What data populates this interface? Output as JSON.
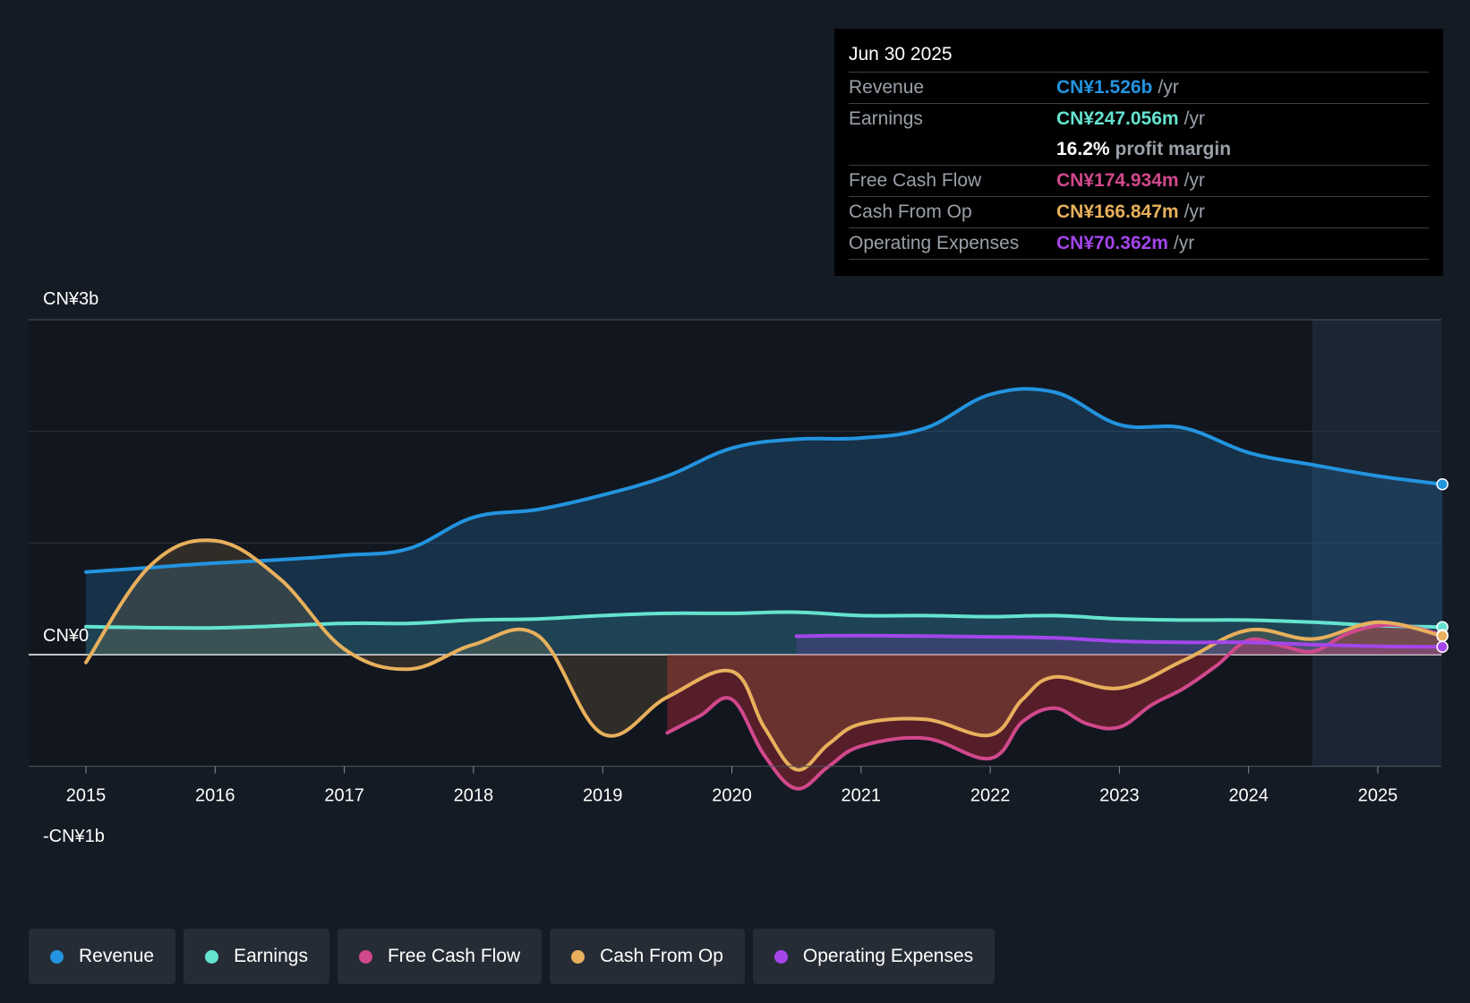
{
  "chart_data": {
    "type": "area",
    "y_axis": {
      "top_label": "CN¥3b",
      "zero_label": "CN¥0",
      "bottom_label": "-CN¥1b",
      "ylim_billion": [
        -1,
        3
      ],
      "grid": true
    },
    "x_axis": {
      "ticks": [
        "2015",
        "2016",
        "2017",
        "2018",
        "2019",
        "2020",
        "2021",
        "2022",
        "2023",
        "2024",
        "2025"
      ],
      "xlim_years": [
        2014.55,
        2025.5
      ]
    },
    "forecast_shade_start_year": 2024.5,
    "series": [
      {
        "name": "Revenue",
        "color": "#2394df",
        "points": [
          [
            2015.0,
            0.74
          ],
          [
            2015.5,
            0.78
          ],
          [
            2016.0,
            0.82
          ],
          [
            2016.5,
            0.85
          ],
          [
            2017.0,
            0.89
          ],
          [
            2017.5,
            0.95
          ],
          [
            2018.0,
            1.23
          ],
          [
            2018.5,
            1.3
          ],
          [
            2019.0,
            1.43
          ],
          [
            2019.5,
            1.6
          ],
          [
            2020.0,
            1.85
          ],
          [
            2020.5,
            1.93
          ],
          [
            2021.0,
            1.94
          ],
          [
            2021.5,
            2.03
          ],
          [
            2022.0,
            2.33
          ],
          [
            2022.5,
            2.35
          ],
          [
            2023.0,
            2.06
          ],
          [
            2023.5,
            2.03
          ],
          [
            2024.0,
            1.81
          ],
          [
            2024.5,
            1.7
          ],
          [
            2025.0,
            1.6
          ],
          [
            2025.5,
            1.526
          ]
        ]
      },
      {
        "name": "Earnings",
        "color": "#64e3cf",
        "points": [
          [
            2015.0,
            0.25
          ],
          [
            2016.0,
            0.24
          ],
          [
            2017.0,
            0.28
          ],
          [
            2017.5,
            0.28
          ],
          [
            2018.0,
            0.31
          ],
          [
            2018.5,
            0.32
          ],
          [
            2019.0,
            0.35
          ],
          [
            2019.5,
            0.37
          ],
          [
            2020.0,
            0.37
          ],
          [
            2020.5,
            0.38
          ],
          [
            2021.0,
            0.35
          ],
          [
            2021.5,
            0.35
          ],
          [
            2022.0,
            0.34
          ],
          [
            2022.5,
            0.35
          ],
          [
            2023.0,
            0.32
          ],
          [
            2023.5,
            0.31
          ],
          [
            2024.0,
            0.31
          ],
          [
            2024.5,
            0.29
          ],
          [
            2025.0,
            0.26
          ],
          [
            2025.5,
            0.247
          ]
        ]
      },
      {
        "name": "Free Cash Flow",
        "color": "#d1488c",
        "points": [
          [
            2019.5,
            -0.7
          ],
          [
            2019.75,
            -0.55
          ],
          [
            2020.0,
            -0.4
          ],
          [
            2020.25,
            -0.9
          ],
          [
            2020.5,
            -1.2
          ],
          [
            2020.75,
            -1.0
          ],
          [
            2021.0,
            -0.82
          ],
          [
            2021.5,
            -0.75
          ],
          [
            2022.0,
            -0.93
          ],
          [
            2022.25,
            -0.6
          ],
          [
            2022.5,
            -0.48
          ],
          [
            2022.75,
            -0.62
          ],
          [
            2023.0,
            -0.65
          ],
          [
            2023.25,
            -0.45
          ],
          [
            2023.5,
            -0.3
          ],
          [
            2023.75,
            -0.1
          ],
          [
            2024.0,
            0.13
          ],
          [
            2024.25,
            0.08
          ],
          [
            2024.5,
            0.03
          ],
          [
            2024.75,
            0.18
          ],
          [
            2025.0,
            0.26
          ],
          [
            2025.25,
            0.25
          ],
          [
            2025.5,
            0.175
          ]
        ]
      },
      {
        "name": "Cash From Op",
        "color": "#e8b05c",
        "points": [
          [
            2015.0,
            -0.07
          ],
          [
            2015.5,
            0.8
          ],
          [
            2016.0,
            1.02
          ],
          [
            2016.5,
            0.68
          ],
          [
            2017.0,
            0.05
          ],
          [
            2017.5,
            -0.13
          ],
          [
            2018.0,
            0.09
          ],
          [
            2018.5,
            0.17
          ],
          [
            2019.0,
            -0.71
          ],
          [
            2019.5,
            -0.38
          ],
          [
            2020.0,
            -0.15
          ],
          [
            2020.25,
            -0.65
          ],
          [
            2020.5,
            -1.03
          ],
          [
            2020.75,
            -0.8
          ],
          [
            2021.0,
            -0.62
          ],
          [
            2021.5,
            -0.58
          ],
          [
            2022.0,
            -0.72
          ],
          [
            2022.25,
            -0.4
          ],
          [
            2022.5,
            -0.2
          ],
          [
            2023.0,
            -0.3
          ],
          [
            2023.5,
            -0.05
          ],
          [
            2024.0,
            0.22
          ],
          [
            2024.5,
            0.14
          ],
          [
            2025.0,
            0.29
          ],
          [
            2025.5,
            0.167
          ]
        ]
      },
      {
        "name": "Operating Expenses",
        "color": "#a446eb",
        "points": [
          [
            2020.5,
            0.165
          ],
          [
            2021.0,
            0.17
          ],
          [
            2022.0,
            0.16
          ],
          [
            2022.5,
            0.15
          ],
          [
            2023.0,
            0.12
          ],
          [
            2023.5,
            0.11
          ],
          [
            2024.0,
            0.11
          ],
          [
            2024.5,
            0.09
          ],
          [
            2025.0,
            0.075
          ],
          [
            2025.5,
            0.07
          ]
        ]
      }
    ]
  },
  "tooltip": {
    "date": "Jun 30 2025",
    "rows": {
      "revenue": {
        "label": "Revenue",
        "value": "CN¥1.526b",
        "unit": "/yr",
        "color": "#2394df"
      },
      "earnings": {
        "label": "Earnings",
        "value": "CN¥247.056m",
        "unit": "/yr",
        "color": "#64e3cf"
      },
      "margin": {
        "value": "16.2%",
        "unit": "profit margin"
      },
      "fcf": {
        "label": "Free Cash Flow",
        "value": "CN¥174.934m",
        "unit": "/yr",
        "color": "#d1488c"
      },
      "cfo": {
        "label": "Cash From Op",
        "value": "CN¥166.847m",
        "unit": "/yr",
        "color": "#e8b05c"
      },
      "opex": {
        "label": "Operating Expenses",
        "value": "CN¥70.362m",
        "unit": "/yr",
        "color": "#a446eb"
      }
    }
  },
  "legend": [
    {
      "label": "Revenue",
      "color": "#2394df"
    },
    {
      "label": "Earnings",
      "color": "#64e3cf"
    },
    {
      "label": "Free Cash Flow",
      "color": "#d1488c"
    },
    {
      "label": "Cash From Op",
      "color": "#e8b05c"
    },
    {
      "label": "Operating Expenses",
      "color": "#a446eb"
    }
  ]
}
